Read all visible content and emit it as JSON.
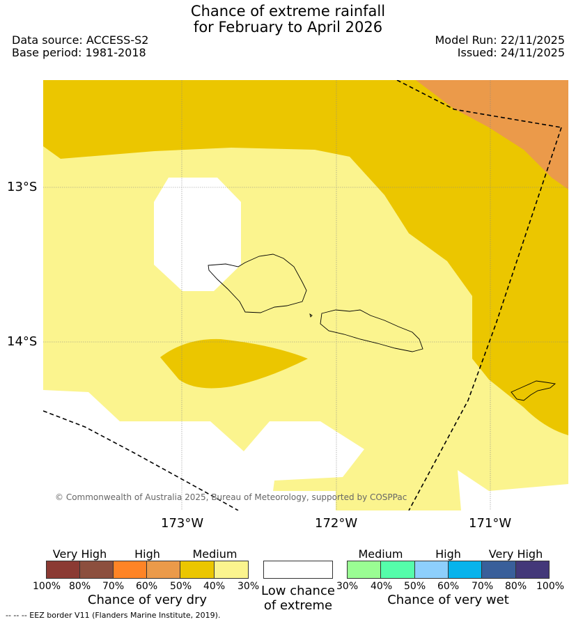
{
  "title_line1": "Chance of extreme rainfall",
  "title_line2": "for February to April 2026",
  "data_source": "Data source: ACCESS-S2",
  "base_period": "Base period: 1981-2018",
  "model_run": "Model Run: 22/11/2025",
  "issued": "Issued: 24/11/2025",
  "lat_ticks": [
    "13°S",
    "14°S"
  ],
  "lon_ticks": [
    "173°W",
    "172°W",
    "171°W"
  ],
  "copyright": "© Commonwealth of Australia 2025, Bureau of Meteorology, supported by COSPPac",
  "dry_legend": {
    "headers": [
      "Very High",
      "High",
      "Medium"
    ],
    "ticks": [
      "100%",
      "80%",
      "70%",
      "60%",
      "50%",
      "40%",
      "30%"
    ],
    "label": "Chance of very dry",
    "colors": [
      "#8b3a33",
      "#8c4f3e",
      "#ff8426",
      "#eb9a4a",
      "#ebc600",
      "#fbf48e"
    ]
  },
  "neutral_legend": {
    "label_line1": "Low chance",
    "label_line2": "of extreme",
    "color": "#ffffff"
  },
  "wet_legend": {
    "headers": [
      "Medium",
      "High",
      "Very High"
    ],
    "ticks": [
      "30%",
      "40%",
      "50%",
      "60%",
      "70%",
      "80%",
      "100%"
    ],
    "label": "Chance of very wet",
    "colors": [
      "#9afd93",
      "#55fdaa",
      "#8dcffc",
      "#07b3ec",
      "#395f9a",
      "#433879"
    ]
  },
  "map_colors": {
    "medium_dry": "#ebc600",
    "low_medium_dry": "#fbf48e",
    "high_dry": "#eb9a4a",
    "low": "#ffffff"
  },
  "eez_note": "-- -- -- EEZ border V11 (Flanders Marine Institute, 2019)."
}
